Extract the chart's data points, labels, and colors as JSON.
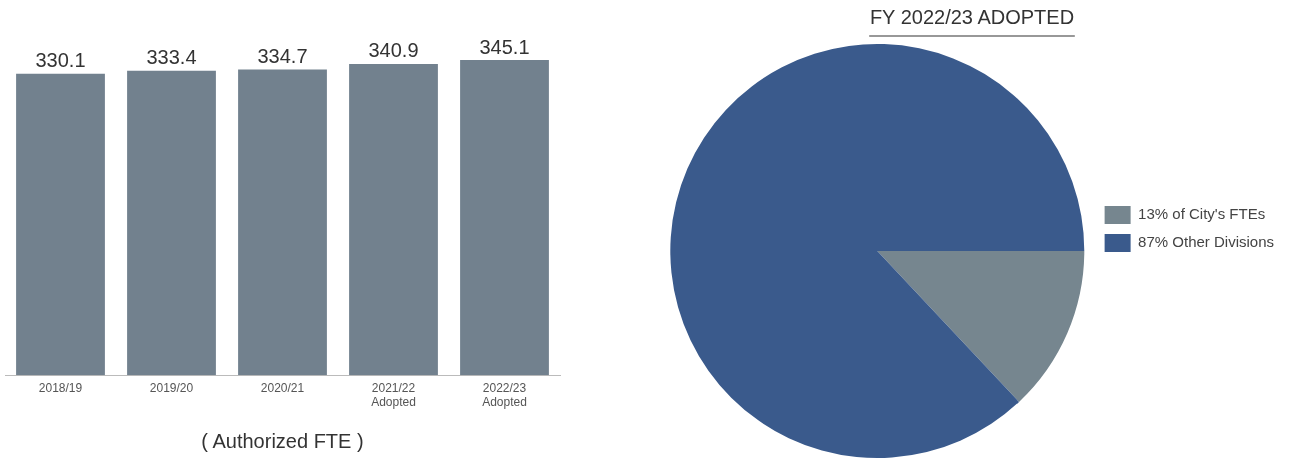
{
  "chart_data": [
    {
      "type": "bar",
      "categories": [
        "2018/19",
        "2019/20",
        "2020/21",
        "2021/22\nAdopted",
        "2022/23\nAdopted"
      ],
      "values": [
        330.1,
        333.4,
        334.7,
        340.9,
        345.1
      ],
      "color": "#72818e",
      "data_labels": true,
      "xlabel": "( Authorized FTE )",
      "grid": false,
      "legend": false
    },
    {
      "type": "pie",
      "title": "FY 2022/23 ADOPTED",
      "categories": [
        "13% of City's FTEs",
        "87% Other Divisions"
      ],
      "values": [
        13,
        87
      ],
      "colors": [
        "#76868f",
        "#3a5a8c"
      ],
      "legend": "right"
    }
  ]
}
